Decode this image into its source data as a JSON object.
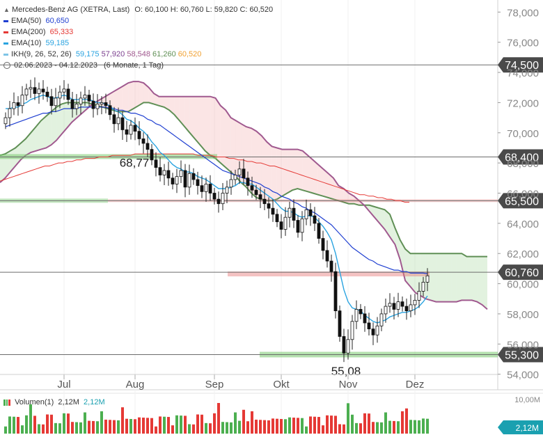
{
  "header": {
    "title": "Mercedes-Benz AG (XETRA, Last)",
    "ohlc": "O: 60,100  H: 60,760  L: 59,820  C: 60,520"
  },
  "legend": [
    {
      "label": "EMA(50)",
      "value": "60,650",
      "color": "#1f3fd1"
    },
    {
      "label": "EMA(200)",
      "value": "65,333",
      "color": "#e53935"
    },
    {
      "label": "EMA(10)",
      "value": "59,185",
      "color": "#29a3e0"
    },
    {
      "label": "IKH(9, 26, 52, 26)",
      "values": [
        "59,175",
        "57,920",
        "58,548",
        "61,260",
        "60,520"
      ],
      "value_colors": [
        "#29a3e0",
        "#7b3f8f",
        "#a0598f",
        "#5f8f55",
        "#f0a030"
      ]
    }
  ],
  "period": {
    "range": "02.06.2023 - 04.12.2023",
    "interval": "(6 Monate, 1 Tag)"
  },
  "volume": {
    "label": "Volumen(1)",
    "v1": "2,12M",
    "v2": "2,12M",
    "axis_tick": "10,00M",
    "badge": "2,12M"
  },
  "chart_data": {
    "type": "candlestick",
    "x_labels": [
      "Jul",
      "Aug",
      "Sep",
      "Okt",
      "Nov",
      "Dez"
    ],
    "y_ticks": [
      "78,000",
      "76,000",
      "74,000",
      "72,000",
      "70,000",
      "68,000",
      "66,000",
      "64,000",
      "62,000",
      "60,000",
      "58,000",
      "56,000",
      "54,000"
    ],
    "y_tick_values": [
      78,
      76,
      74,
      72,
      70,
      68,
      66,
      64,
      62,
      60,
      58,
      56,
      54
    ],
    "ylim": [
      53.2,
      78.8
    ],
    "horizontal_levels": [
      {
        "value": 74.5,
        "label": "74,500"
      },
      {
        "value": 68.4,
        "label": "68,400"
      },
      {
        "value": 65.5,
        "label": "65,500"
      },
      {
        "value": 60.76,
        "label": "60,760"
      },
      {
        "value": 55.3,
        "label": "55,300"
      }
    ],
    "annotations": [
      {
        "text": "68,77",
        "value": 68.77
      },
      {
        "text": "55,08",
        "value": 55.08
      }
    ],
    "closes": [
      71.0,
      71.6,
      72.0,
      71.8,
      72.5,
      72.9,
      73.0,
      72.6,
      72.9,
      72.7,
      72.4,
      71.8,
      72.3,
      72.7,
      72.9,
      72.2,
      71.6,
      71.9,
      72.3,
      72.5,
      72.1,
      71.6,
      71.9,
      72.0,
      71.8,
      71.2,
      70.6,
      71.0,
      70.2,
      69.9,
      70.5,
      70.1,
      69.6,
      69.3,
      68.9,
      68.2,
      67.7,
      67.2,
      67.5,
      67.0,
      66.6,
      67.1,
      67.5,
      66.4,
      67.3,
      66.9,
      66.5,
      66.1,
      66.6,
      66.0,
      65.6,
      65.3,
      66.0,
      66.4,
      66.9,
      67.2,
      67.6,
      67.0,
      66.5,
      66.2,
      65.9,
      65.6,
      65.3,
      65.0,
      64.6,
      64.1,
      63.6,
      64.4,
      65.0,
      64.2,
      63.4,
      64.3,
      64.9,
      64.5,
      64.0,
      63.0,
      62.2,
      61.5,
      60.8,
      58.2,
      56.5,
      55.4,
      56.3,
      57.5,
      58.3,
      58.0,
      57.4,
      57.0,
      56.6,
      57.2,
      58.0,
      58.5,
      58.7,
      58.3,
      58.8,
      58.5,
      58.2,
      58.6,
      58.9,
      59.5,
      60.1,
      60.52
    ],
    "ema10": [
      71.6,
      71.6,
      71.7,
      71.7,
      71.9,
      72.0,
      72.2,
      72.3,
      72.4,
      72.5,
      72.4,
      72.3,
      72.3,
      72.4,
      72.5,
      72.4,
      72.2,
      72.2,
      72.2,
      72.2,
      72.2,
      72.1,
      72.0,
      72.0,
      71.9,
      71.8,
      71.5,
      71.4,
      71.2,
      70.9,
      70.8,
      70.6,
      70.3,
      70.1,
      69.8,
      69.4,
      69.1,
      68.7,
      68.5,
      68.2,
      67.9,
      67.7,
      67.6,
      67.4,
      67.4,
      67.3,
      67.1,
      67.0,
      66.9,
      66.7,
      66.5,
      66.3,
      66.3,
      66.3,
      66.4,
      66.5,
      66.7,
      66.7,
      66.6,
      66.6,
      66.4,
      66.2,
      66.0,
      65.8,
      65.6,
      65.3,
      65.0,
      64.8,
      64.8,
      64.7,
      64.5,
      64.4,
      64.5,
      64.5,
      64.4,
      64.1,
      63.8,
      63.4,
      62.9,
      62.0,
      60.8,
      59.6,
      58.8,
      58.4,
      58.3,
      58.2,
      57.9,
      57.7,
      57.5,
      57.4,
      57.5,
      57.6,
      57.8,
      57.9,
      58.0,
      58.1,
      58.1,
      58.2,
      58.3,
      58.5,
      58.8,
      59.185
    ],
    "ema50": [
      70.4,
      70.5,
      70.6,
      70.7,
      70.8,
      70.9,
      71.0,
      71.1,
      71.2,
      71.3,
      71.3,
      71.4,
      71.4,
      71.5,
      71.6,
      71.6,
      71.6,
      71.6,
      71.7,
      71.7,
      71.7,
      71.7,
      71.7,
      71.7,
      71.7,
      71.6,
      71.6,
      71.5,
      71.5,
      71.4,
      71.3,
      71.3,
      71.2,
      71.1,
      70.9,
      70.8,
      70.6,
      70.5,
      70.3,
      70.1,
      69.9,
      69.7,
      69.5,
      69.3,
      69.1,
      68.9,
      68.7,
      68.5,
      68.3,
      68.1,
      67.9,
      67.7,
      67.5,
      67.4,
      67.3,
      67.2,
      67.1,
      67.0,
      66.9,
      66.8,
      66.7,
      66.6,
      66.4,
      66.3,
      66.1,
      66.0,
      65.8,
      65.7,
      65.6,
      65.4,
      65.3,
      65.1,
      65.0,
      64.8,
      64.7,
      64.5,
      64.3,
      64.1,
      63.9,
      63.6,
      63.3,
      63.0,
      62.7,
      62.4,
      62.2,
      62.0,
      61.8,
      61.6,
      61.5,
      61.3,
      61.2,
      61.1,
      61.0,
      60.9,
      60.9,
      60.8,
      60.8,
      60.7,
      60.7,
      60.7,
      60.7,
      60.65
    ],
    "ema200": [
      66.8,
      66.9,
      67.0,
      67.1,
      67.2,
      67.3,
      67.4,
      67.5,
      67.6,
      67.7,
      67.8,
      67.8,
      67.9,
      68.0,
      68.0,
      68.1,
      68.1,
      68.2,
      68.2,
      68.3,
      68.3,
      68.3,
      68.4,
      68.4,
      68.4,
      68.5,
      68.5,
      68.5,
      68.5,
      68.5,
      68.6,
      68.6,
      68.6,
      68.6,
      68.6,
      68.6,
      68.6,
      68.6,
      68.6,
      68.6,
      68.6,
      68.6,
      68.6,
      68.6,
      68.5,
      68.5,
      68.5,
      68.5,
      68.4,
      68.4,
      68.4,
      68.3,
      68.3,
      68.2,
      68.2,
      68.1,
      68.1,
      68.0,
      68.0,
      67.9,
      67.8,
      67.8,
      67.7,
      67.6,
      67.5,
      67.4,
      67.3,
      67.2,
      67.1,
      67.0,
      66.9,
      66.8,
      66.7,
      66.6,
      66.5,
      66.4,
      66.3,
      66.2,
      66.1,
      66.0,
      65.9,
      65.9,
      65.8,
      65.8,
      65.7,
      65.7,
      65.6,
      65.6,
      65.5,
      65.5,
      65.4,
      65.4
    ],
    "ikh_span_a": [
      68.5,
      68.6,
      68.8,
      69.0,
      69.3,
      69.6,
      70.0,
      70.4,
      70.8,
      71.1,
      71.4,
      71.7,
      71.9,
      72.0,
      72.0,
      72.0,
      72.0,
      72.0,
      71.9,
      71.8,
      71.7,
      71.6,
      71.5,
      71.4,
      71.4,
      71.4,
      71.6,
      71.8,
      72.0,
      72.0,
      71.9,
      71.8,
      71.7,
      71.5,
      71.2,
      70.8,
      70.4,
      70.0,
      69.6,
      69.2,
      68.8,
      68.5,
      68.3,
      68.0,
      67.7,
      67.4,
      67.1,
      66.7,
      66.4,
      66.0,
      65.7,
      65.6,
      65.5,
      65.5,
      65.6,
      65.8,
      66.0,
      66.2,
      66.3,
      66.2,
      66.1,
      66.0,
      65.9,
      65.8,
      65.7,
      65.6,
      65.5,
      65.4,
      65.3,
      65.3,
      65.2,
      65.2,
      65.2,
      65.1,
      65.0,
      64.9,
      64.6,
      63.7,
      62.9,
      62.3,
      62.0,
      62.0,
      62.0,
      62.0,
      62.0,
      62.0,
      62.0,
      62.0,
      62.0,
      62.0,
      62.0,
      61.8,
      61.8,
      61.8,
      61.8,
      61.8
    ],
    "ikh_span_b": [
      66.7,
      67.0,
      67.4,
      67.8,
      68.2,
      68.5,
      68.7,
      68.8,
      68.9,
      69.0,
      69.2,
      69.5,
      69.9,
      70.3,
      70.7,
      71.0,
      71.3,
      71.6,
      71.9,
      72.1,
      72.3,
      72.5,
      72.7,
      72.9,
      73.1,
      73.3,
      73.4,
      73.4,
      73.3,
      73.0,
      72.6,
      72.4,
      72.4,
      72.4,
      72.4,
      72.4,
      72.4,
      72.4,
      72.4,
      72.4,
      72.4,
      72.4,
      72.3,
      71.8,
      71.5,
      71.0,
      70.8,
      70.6,
      70.4,
      70.3,
      70.1,
      69.8,
      69.4,
      69.1,
      69.0,
      68.9,
      68.9,
      68.9,
      68.9,
      68.8,
      68.5,
      68.2,
      67.9,
      67.6,
      67.3,
      67.0,
      66.5,
      66.3,
      66.0,
      65.8,
      65.5,
      65.2,
      64.8,
      64.4,
      64.0,
      63.6,
      63.1,
      62.6,
      61.6,
      60.2,
      59.8,
      59.4,
      59.2,
      59.0,
      58.9,
      58.8,
      58.8,
      58.8,
      58.8,
      58.8,
      58.9,
      58.9,
      58.9,
      58.8,
      58.6,
      58.3
    ]
  }
}
